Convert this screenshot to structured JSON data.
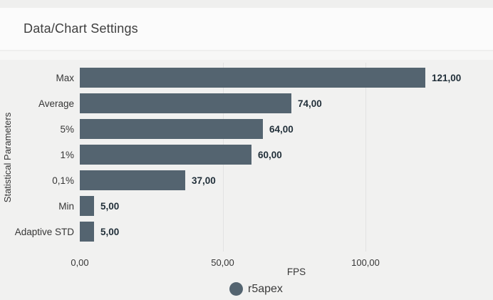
{
  "header": {
    "title": "Data/Chart Settings"
  },
  "chart_data": {
    "type": "bar",
    "orientation": "horizontal",
    "categories": [
      "Max",
      "Average",
      "5%",
      "1%",
      "0,1%",
      "Min",
      "Adaptive STD"
    ],
    "values": [
      121,
      74,
      64,
      60,
      37,
      5,
      5
    ],
    "value_labels": [
      "121,00",
      "74,00",
      "64,00",
      "60,00",
      "37,00",
      "5,00",
      "5,00"
    ],
    "series_name": "r5apex",
    "xlabel": "FPS",
    "ylabel": "Statistical Parameters",
    "x_ticks": [
      {
        "value": 0,
        "label": "0,00"
      },
      {
        "value": 50,
        "label": "50,00"
      },
      {
        "value": 100,
        "label": "100,00"
      }
    ],
    "xlim": [
      0,
      134
    ],
    "grid": "vertical gridlines at ticks",
    "legend": {
      "position": "bottom",
      "items": [
        {
          "label": "r5apex",
          "marker": "circle"
        }
      ]
    }
  },
  "colors": {
    "page_bg": "#f1f1f0",
    "header_bg": "#fbfbfb",
    "bar": "#546470",
    "grid_line": "#e2e2e2",
    "text": "#363636",
    "value_label": "#22303a",
    "title": "#3f3f3f"
  }
}
